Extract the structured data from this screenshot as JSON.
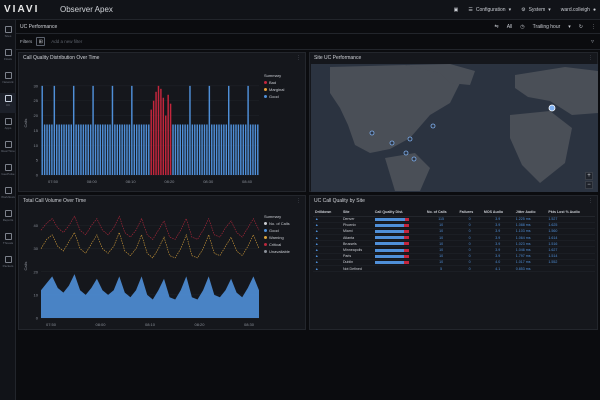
{
  "app": {
    "logo": "VIAVI",
    "title": "Observer Apex"
  },
  "topbar": {
    "configuration": "Configuration",
    "system": "System",
    "user": "ward.colleigh"
  },
  "sidebar": {
    "items": [
      {
        "label": "Sites",
        "icon": "sites-icon"
      },
      {
        "label": "Flows",
        "icon": "flows-icon"
      },
      {
        "label": "Network",
        "icon": "network-icon"
      },
      {
        "label": "UC",
        "icon": "phone-icon"
      },
      {
        "label": "Apps",
        "icon": "apps-icon"
      },
      {
        "label": "Real Time",
        "icon": "realtime-icon"
      },
      {
        "label": "GeoPulse",
        "icon": "globe-icon"
      },
      {
        "label": "Workflows",
        "icon": "workflow-icon"
      },
      {
        "label": "Reports",
        "icon": "reports-icon"
      },
      {
        "label": "Threats",
        "icon": "threats-icon"
      },
      {
        "label": "Packets",
        "icon": "packets-icon"
      }
    ]
  },
  "header": {
    "title": "UC Performance",
    "time_all": "All",
    "time_range": "Trailing hour"
  },
  "filters": {
    "label": "Filters",
    "placeholder": "Add a new filter"
  },
  "panels": {
    "distribution": {
      "title": "Call Quality Distribution Over Time"
    },
    "site": {
      "title": "Site UC Performance"
    },
    "volume": {
      "title": "Total Call Volume Over Time"
    },
    "table": {
      "title": "UC Call Quality by Site"
    }
  },
  "legend1": {
    "title": "Summary",
    "items": [
      "Bad",
      "Marginal",
      "Good"
    ]
  },
  "legend2": {
    "title": "Summary",
    "items": [
      "No. of Calls",
      "Good",
      "Warning",
      "Critical",
      "Unavailable"
    ]
  },
  "colors": {
    "good": "#4f8fd8",
    "bad": "#c4263d",
    "marginal": "#e8a33a",
    "warning": "#d9a23b",
    "critical": "#b8283c",
    "unavailable": "#8a8f98",
    "blue": "#4f8fd8"
  },
  "chart_data": [
    {
      "type": "bar",
      "title": "Call Quality Distribution Over Time",
      "ylabel": "Calls",
      "ylim": [
        0,
        35
      ],
      "yticks": [
        0,
        5,
        10,
        15,
        20,
        25,
        30
      ],
      "xticks": [
        "07:50",
        "08:00",
        "08:10",
        "08:20",
        "08:30",
        "08:40"
      ],
      "series": [
        {
          "name": "Good",
          "values": [
            30,
            17,
            17,
            17,
            17,
            30,
            17,
            17,
            17,
            17,
            17,
            17,
            17,
            30,
            17,
            17,
            17,
            17,
            17,
            17,
            17,
            30,
            17,
            17,
            17,
            17,
            17,
            17,
            17,
            30,
            17,
            17,
            17,
            17,
            17,
            17,
            17,
            30,
            17,
            17,
            17,
            17,
            17,
            17,
            17,
            30,
            17,
            17,
            17,
            17,
            17,
            17,
            17,
            30,
            17,
            17,
            17,
            17,
            17,
            17,
            17,
            30,
            17,
            17,
            17,
            17,
            17,
            17,
            17,
            30,
            17,
            17,
            17,
            17,
            17,
            17,
            17,
            30,
            17,
            17,
            17,
            17,
            17,
            17,
            17,
            30,
            17,
            17,
            17,
            17
          ]
        },
        {
          "name": "Bad",
          "values": [
            0,
            0,
            0,
            0,
            0,
            0,
            0,
            0,
            0,
            0,
            0,
            0,
            0,
            0,
            0,
            0,
            0,
            0,
            0,
            0,
            0,
            0,
            0,
            0,
            0,
            0,
            0,
            0,
            0,
            0,
            0,
            0,
            0,
            0,
            0,
            0,
            0,
            0,
            0,
            0,
            0,
            0,
            0,
            0,
            0,
            0,
            0,
            0,
            0,
            0,
            0,
            0,
            0,
            0,
            0,
            0,
            0,
            0,
            0,
            0,
            0,
            0,
            0,
            0,
            0,
            0,
            0,
            0,
            0,
            0,
            0,
            0,
            0,
            0,
            0,
            0,
            0,
            0,
            0,
            0,
            0,
            0,
            0,
            0,
            0,
            0,
            0,
            0,
            0,
            0
          ]
        }
      ],
      "bad_window": {
        "start_index": 45,
        "values": [
          22,
          25,
          28,
          30,
          29,
          26,
          20,
          27,
          24
        ]
      }
    },
    {
      "type": "area",
      "title": "Total Call Volume Over Time",
      "ylabel": "Calls",
      "ylim": [
        0,
        45
      ],
      "yticks": [
        0,
        10,
        20,
        30,
        40
      ],
      "xticks": [
        "07:50",
        "08:00",
        "08:10",
        "08:20",
        "08:30"
      ],
      "series": [
        {
          "name": "Good",
          "values": [
            12,
            15,
            18,
            13,
            11,
            14,
            19,
            12,
            10,
            13,
            17,
            12,
            10,
            12,
            18,
            11,
            9,
            12,
            18,
            10,
            8,
            12,
            17,
            9,
            8,
            12,
            18,
            9,
            8,
            12,
            18,
            10,
            9,
            12,
            17,
            11,
            9,
            13,
            18,
            12
          ]
        },
        {
          "name": "Warning",
          "values": [
            30,
            34,
            36,
            31,
            29,
            33,
            37,
            30,
            28,
            32,
            36,
            30,
            28,
            31,
            37,
            29,
            27,
            30,
            36,
            28,
            26,
            30,
            35,
            27,
            26,
            30,
            36,
            27,
            26,
            30,
            36,
            28,
            27,
            31,
            35,
            29,
            27,
            31,
            36,
            30
          ]
        },
        {
          "name": "Critical",
          "values": [
            38,
            41,
            43,
            39,
            37,
            40,
            44,
            38,
            36,
            40,
            43,
            38,
            36,
            39,
            44,
            37,
            35,
            38,
            43,
            36,
            34,
            38,
            42,
            35,
            34,
            38,
            43,
            35,
            34,
            38,
            43,
            36,
            35,
            39,
            42,
            37,
            35,
            39,
            43,
            38
          ]
        }
      ]
    }
  ],
  "table": {
    "columns": [
      "Drilldown",
      "Site",
      "Call Quality Dist.",
      "No. of Calls",
      "Failures",
      "MOS Audio",
      "Jitter Audio",
      "Pkts Lost % Audio"
    ],
    "rows": [
      {
        "site": "Denver",
        "calls": "115",
        "failures": "0",
        "mos": "3.9",
        "jitter": "1.225 ms",
        "loss": "1.527",
        "good": 0.9,
        "bad": 0.1
      },
      {
        "site": "Phoenix",
        "calls": "10",
        "failures": "0",
        "mos": "3.9",
        "jitter": "1.088 ms",
        "loss": "1.625",
        "good": 0.85,
        "bad": 0.15
      },
      {
        "site": "Miami",
        "calls": "10",
        "failures": "0",
        "mos": "3.9",
        "jitter": "1.103 ms",
        "loss": "1.560",
        "good": 0.85,
        "bad": 0.15
      },
      {
        "site": "Atlanta",
        "calls": "10",
        "failures": "0",
        "mos": "3.9",
        "jitter": "1.064 ms",
        "loss": "1.614",
        "good": 0.85,
        "bad": 0.15
      },
      {
        "site": "Brussels",
        "calls": "10",
        "failures": "0",
        "mos": "3.9",
        "jitter": "1.023 ms",
        "loss": "1.516",
        "good": 0.85,
        "bad": 0.15
      },
      {
        "site": "Minneapolis",
        "calls": "10",
        "failures": "0",
        "mos": "3.9",
        "jitter": "1.046 ms",
        "loss": "1.627",
        "good": 0.85,
        "bad": 0.15
      },
      {
        "site": "Paris",
        "calls": "10",
        "failures": "0",
        "mos": "3.9",
        "jitter": "1.797 ms",
        "loss": "1.514",
        "good": 0.85,
        "bad": 0.15
      },
      {
        "site": "Dublin",
        "calls": "10",
        "failures": "0",
        "mos": "4.0",
        "jitter": "1.017 ms",
        "loss": "1.552",
        "good": 0.85,
        "bad": 0.15
      },
      {
        "site": "Not Defined",
        "calls": "5",
        "failures": "0",
        "mos": "4.1",
        "jitter": "0.853 ms",
        "loss": "",
        "good": 0,
        "bad": 0
      }
    ]
  }
}
